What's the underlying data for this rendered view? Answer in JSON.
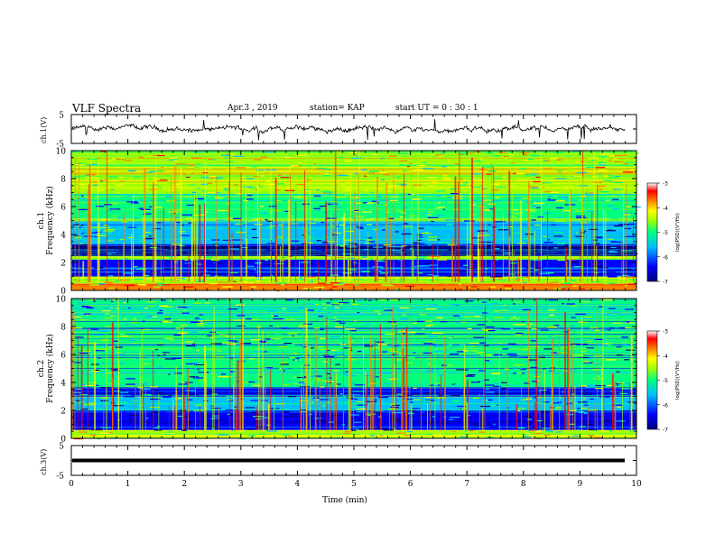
{
  "header": {
    "title": "VLF Spectra",
    "date": "Apr.3 , 2019",
    "station": "station= KAP",
    "start_ut": "start UT = 0 : 30 : 1"
  },
  "colors": {
    "trace": "#000000",
    "colormap": [
      "#00007f",
      "#0000ff",
      "#00bfff",
      "#00ff7f",
      "#9fff00",
      "#ffff00",
      "#ff7f00",
      "#ff0000",
      "#ffffff"
    ]
  },
  "chart_data": [
    {
      "id": "ch1-waveform",
      "type": "line",
      "ylabel": "ch.1(V)",
      "ylim": [
        -5,
        5
      ],
      "yticks": [
        "5",
        "-5"
      ],
      "xlim": [
        0,
        10
      ],
      "mean_level": 0,
      "fluctuation": "noisy trace around ~0 V with spikes up to about ±4 V"
    },
    {
      "id": "ch1-spectrogram",
      "type": "heatmap",
      "ylabel": "ch.1 Frequency (kHz)",
      "ylim": [
        0,
        10
      ],
      "yticks": [
        "0",
        "2",
        "4",
        "6",
        "8",
        "10"
      ],
      "xlim": [
        0,
        10
      ],
      "colorbar": {
        "label": "log(PSD)(V²/Hz)",
        "range": [
          -7,
          -3
        ],
        "ticks": [
          "-3",
          "-4",
          "-5",
          "-6",
          "-7"
        ]
      },
      "bands": [
        {
          "from": 0,
          "to": 0.5,
          "level": -4.0
        },
        {
          "from": 0.5,
          "to": 1.0,
          "level": -4.6
        },
        {
          "from": 1.0,
          "to": 2.2,
          "level": -6.3
        },
        {
          "from": 2.2,
          "to": 2.5,
          "level": -4.8
        },
        {
          "from": 2.5,
          "to": 3.2,
          "level": -6.6
        },
        {
          "from": 3.2,
          "to": 5.0,
          "level": -5.7
        },
        {
          "from": 5.0,
          "to": 7.0,
          "level": -5.2
        },
        {
          "from": 7.0,
          "to": 10.0,
          "level": -4.6
        }
      ]
    },
    {
      "id": "ch2-spectrogram",
      "type": "heatmap",
      "ylabel": "ch.2 Frequency (kHz)",
      "ylim": [
        0,
        10
      ],
      "yticks": [
        "0",
        "2",
        "4",
        "6",
        "8",
        "10"
      ],
      "xlim": [
        0,
        10
      ],
      "colorbar": {
        "label": "log(PSD)(V²/Hz)",
        "range": [
          -7,
          -3
        ],
        "ticks": [
          "-3",
          "-4",
          "-5",
          "-6",
          "-7"
        ]
      },
      "bands": [
        {
          "from": 0,
          "to": 0.6,
          "level": -4.6
        },
        {
          "from": 0.6,
          "to": 2.0,
          "level": -6.5
        },
        {
          "from": 2.0,
          "to": 3.0,
          "level": -5.6
        },
        {
          "from": 3.0,
          "to": 3.6,
          "level": -6.2
        },
        {
          "from": 3.6,
          "to": 7.0,
          "level": -5.5
        },
        {
          "from": 7.0,
          "to": 10.0,
          "level": -5.3
        }
      ]
    },
    {
      "id": "ch3-waveform",
      "type": "line",
      "ylabel": "ch.3(V)",
      "ylim": [
        -5,
        5
      ],
      "yticks": [
        "5",
        "-5"
      ],
      "xlim": [
        0,
        10
      ],
      "mean_level": 0
    }
  ],
  "xaxis": {
    "label": "Time (min)",
    "ticks": [
      "0",
      "1",
      "2",
      "3",
      "4",
      "5",
      "6",
      "7",
      "8",
      "9",
      "10"
    ]
  }
}
